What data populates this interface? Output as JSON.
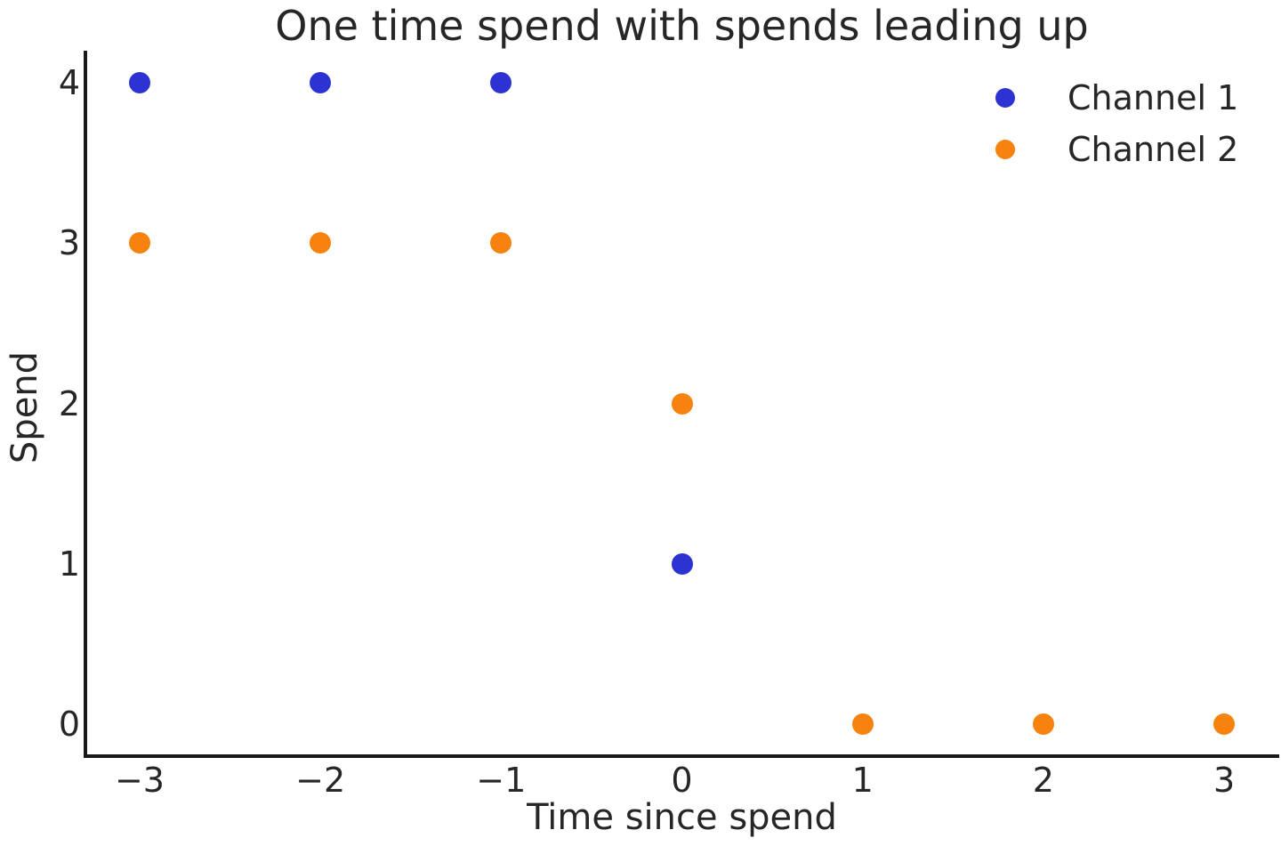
{
  "figure": {
    "background_color": "#ffffff",
    "text_color": "#262626",
    "spine_color": "#1a1a1a"
  },
  "chart_data": {
    "type": "scatter",
    "title": "One time spend with spends leading up",
    "xlabel": "Time since spend",
    "ylabel": "Spend",
    "xlim": [
      -3.3,
      3.3
    ],
    "ylim": [
      -0.2,
      4.2
    ],
    "grid": false,
    "legend_position": "upper right",
    "xticks": {
      "values": [
        -3,
        -2,
        -1,
        0,
        1,
        2,
        3
      ],
      "labels": [
        "−3",
        "−2",
        "−1",
        "0",
        "1",
        "2",
        "3"
      ]
    },
    "yticks": {
      "values": [
        0,
        1,
        2,
        3,
        4
      ],
      "labels": [
        "0",
        "1",
        "2",
        "3",
        "4"
      ]
    },
    "series": [
      {
        "name": "Channel 1",
        "color": "#2d32d2",
        "x": [
          -3,
          -2,
          -1,
          0
        ],
        "y": [
          4,
          4,
          4,
          1
        ]
      },
      {
        "name": "Channel 2",
        "color": "#f8820e",
        "x": [
          -3,
          -2,
          -1,
          0,
          1,
          2,
          3
        ],
        "y": [
          3,
          3,
          3,
          2,
          0,
          0,
          0
        ]
      }
    ]
  }
}
